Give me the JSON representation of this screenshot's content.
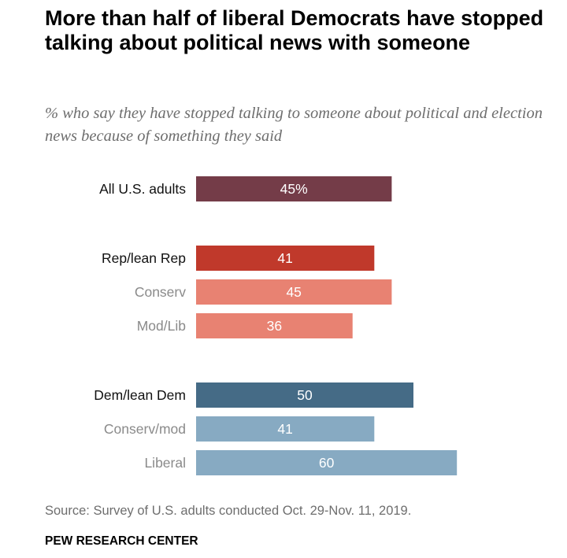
{
  "chart_data": {
    "type": "bar",
    "orientation": "horizontal",
    "title": "More than half of liberal Democrats have stopped talking about political news with someone",
    "subtitle": "% who say they have stopped talking to someone about political and election news because of something they said",
    "categories": [
      "All U.S. adults",
      "Rep/lean Rep",
      "Conserv",
      "Mod/Lib",
      "Dem/lean Dem",
      "Conserv/mod",
      "Liberal"
    ],
    "values": [
      45,
      41,
      45,
      36,
      50,
      41,
      60
    ],
    "value_labels": [
      "45%",
      "41",
      "45",
      "36",
      "50",
      "41",
      "60"
    ],
    "label_colors": [
      "#111111",
      "#111111",
      "#8a8a8a",
      "#8a8a8a",
      "#111111",
      "#8a8a8a",
      "#8a8a8a"
    ],
    "bar_colors": [
      "#743c48",
      "#c0392b",
      "#e88272",
      "#e88272",
      "#456b86",
      "#87aac2",
      "#87aac2"
    ],
    "groups": [
      "all",
      "rep",
      "rep",
      "rep",
      "dem",
      "dem",
      "dem"
    ],
    "xlim": [
      0,
      60
    ],
    "grid": false,
    "legend": "none"
  },
  "footer": {
    "source": "Source: Survey of U.S. adults conducted Oct. 29-Nov. 11, 2019.",
    "brand": "PEW RESEARCH CENTER"
  }
}
